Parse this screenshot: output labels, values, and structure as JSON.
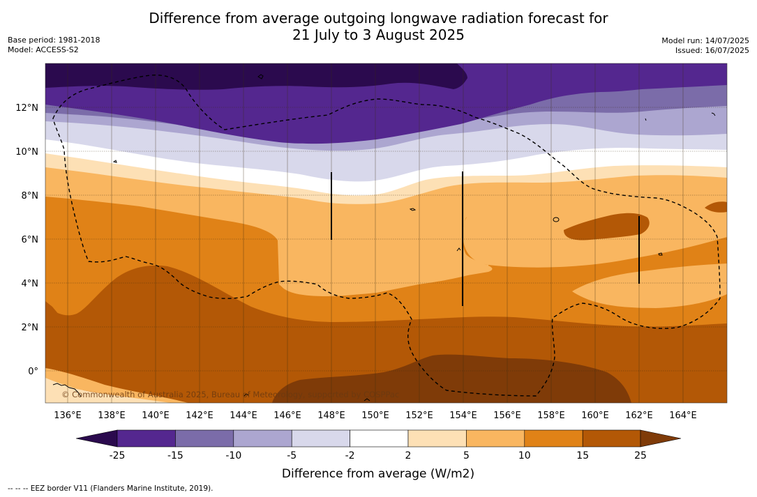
{
  "title": {
    "line1": "Difference from average outgoing longwave radiation forecast for",
    "line2": "21 July to 3 August 2025"
  },
  "meta_left": {
    "base_period": "Base period: 1981-2018",
    "model": "Model: ACCESS-S2"
  },
  "meta_right": {
    "model_run": "Model run: 14/07/2025",
    "issued": "Issued: 16/07/2025"
  },
  "map": {
    "lat_labels": [
      "12°N",
      "10°N",
      "8°N",
      "6°N",
      "4°N",
      "2°N",
      "0°"
    ],
    "lon_labels": [
      "136°E",
      "138°E",
      "140°E",
      "142°E",
      "144°E",
      "146°E",
      "148°E",
      "150°E",
      "152°E",
      "154°E",
      "156°E",
      "158°E",
      "160°E",
      "162°E",
      "164°E"
    ],
    "copyright": "© Commonwealth of Australia 2025, Bureau of Meteorology, supported by COSPPac"
  },
  "legend": {
    "tick_labels": [
      "-25",
      "-15",
      "-10",
      "-5",
      "-2",
      "2",
      "5",
      "10",
      "15",
      "25"
    ],
    "colors": [
      "#2b0a4e",
      "#54278f",
      "#7b6ca9",
      "#aca6d0",
      "#d8d8eb",
      "#ffffff",
      "#fde0b5",
      "#f9b660",
      "#e08217",
      "#b35806",
      "#7f3b08"
    ],
    "title": "Difference from average (W/m2)"
  },
  "footnote": "--  --  -- EEZ border V11 (Flanders Marine Institute, 2019)."
}
